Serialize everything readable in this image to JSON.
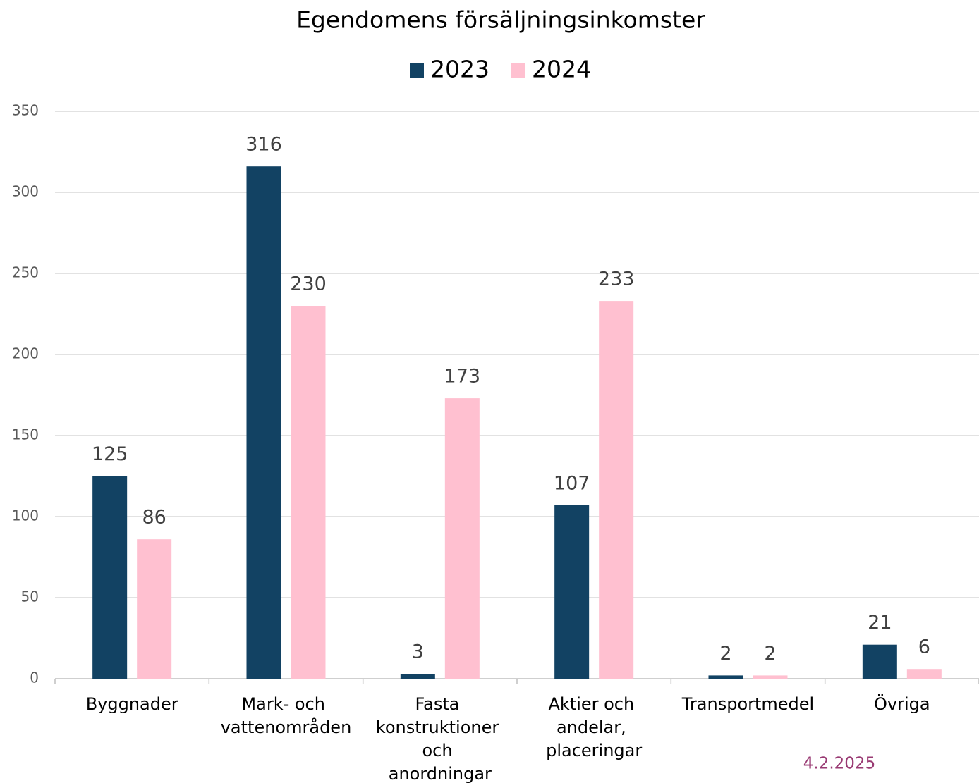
{
  "chart_data": {
    "type": "bar",
    "title": "Egendomens försäljningsinkomster",
    "categories": [
      "Byggnader",
      "Mark- och vattenområden",
      "Fasta konstruktioner och anordningar",
      "Aktier och andelar, placeringar",
      "Transportmedel",
      "Övriga"
    ],
    "series": [
      {
        "name": "2023",
        "color": "#124263",
        "values": [
          125,
          316,
          3,
          107,
          2,
          21
        ]
      },
      {
        "name": "2024",
        "color": "#ffc0d0",
        "values": [
          86,
          230,
          173,
          233,
          2,
          6
        ]
      }
    ],
    "ylim": [
      0,
      350
    ],
    "yticks": [
      0,
      50,
      100,
      150,
      200,
      250,
      300,
      350
    ],
    "grid": true,
    "legend": "top",
    "annotation": "4.2.2025"
  }
}
